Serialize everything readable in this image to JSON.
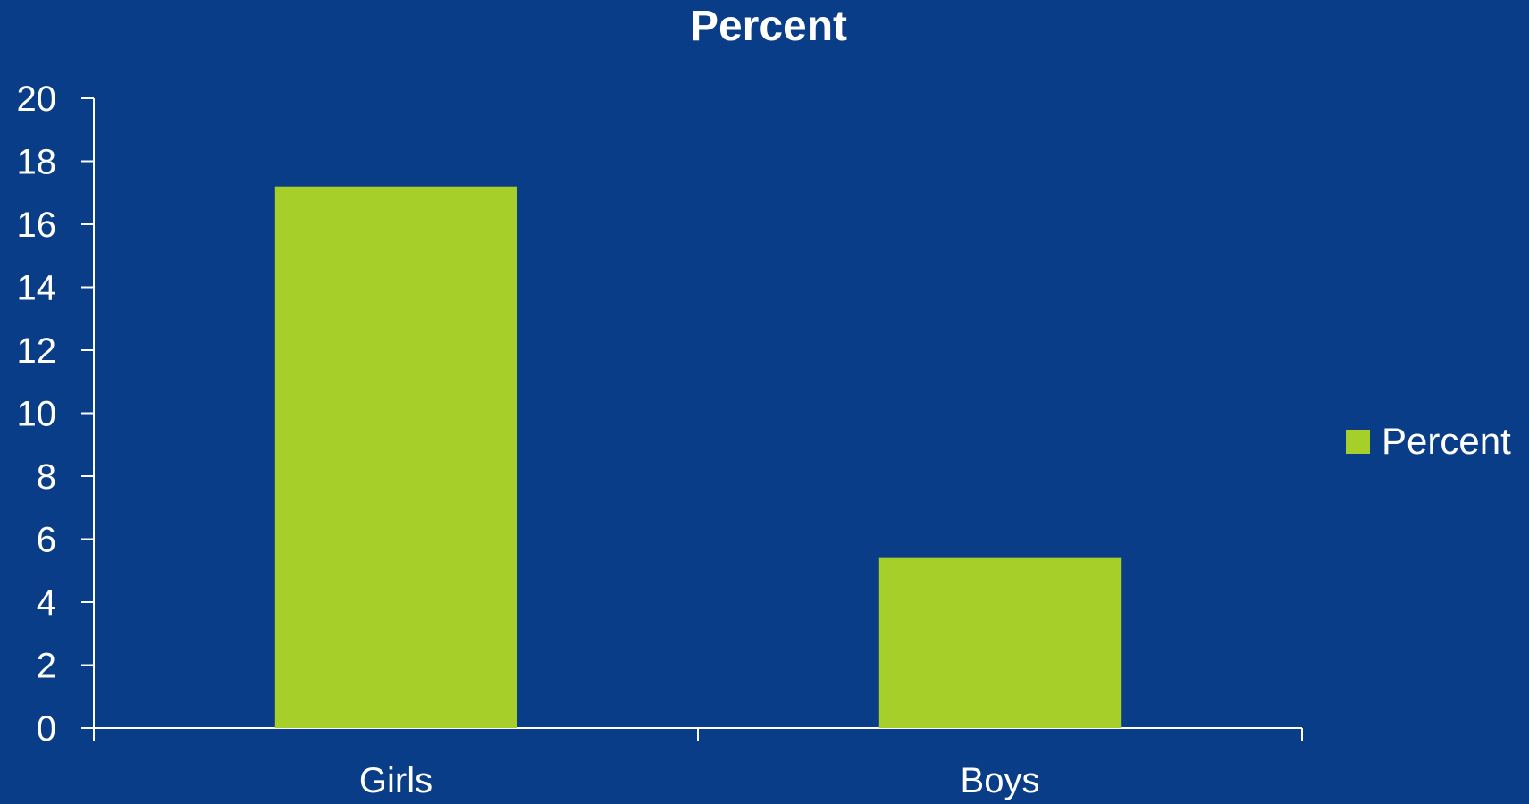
{
  "colors": {
    "background": "#0a3d87",
    "bar": "#a6d029",
    "axis": "#ffffff",
    "text": "#ffffff"
  },
  "chart_data": {
    "type": "bar",
    "title": "Percent",
    "categories": [
      "Girls",
      "Boys"
    ],
    "series": [
      {
        "name": "Percent",
        "values": [
          17.2,
          5.4
        ]
      }
    ],
    "xlabel": "",
    "ylabel": "",
    "ylim": [
      0,
      20
    ],
    "yticks": [
      "0",
      "2",
      "4",
      "6",
      "8",
      "10",
      "12",
      "14",
      "16",
      "18",
      "20"
    ],
    "grid": false,
    "legend_position": "right"
  }
}
